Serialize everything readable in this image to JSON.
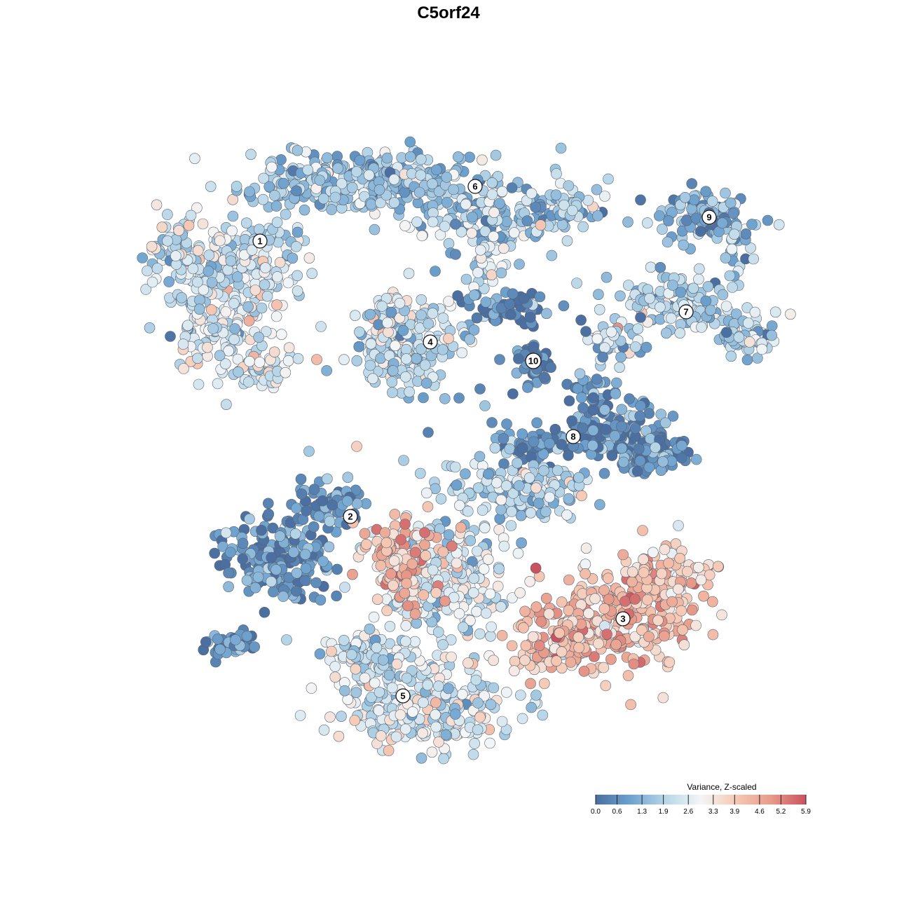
{
  "chart_data": {
    "type": "scatter",
    "title": "C5orf24",
    "xlabel": "",
    "ylabel": "",
    "grid": false,
    "legend_position": "bottom-right",
    "colorbar": {
      "title": "Variance, Z-scaled",
      "range": [
        0.0,
        5.9
      ],
      "ticks": [
        {
          "value": 0.0,
          "label": "0.0"
        },
        {
          "value": 0.6,
          "label": "0.6"
        },
        {
          "value": 1.3,
          "label": "1.3"
        },
        {
          "value": 1.9,
          "label": "1.9"
        },
        {
          "value": 2.6,
          "label": "2.6"
        },
        {
          "value": 3.3,
          "label": "3.3"
        },
        {
          "value": 3.9,
          "label": "3.9"
        },
        {
          "value": 4.6,
          "label": "4.6"
        },
        {
          "value": 5.2,
          "label": "5.2"
        },
        {
          "value": 5.9,
          "label": "5.9"
        }
      ],
      "colors": [
        "#4a6fa0",
        "#6fa3cf",
        "#b7d6e8",
        "#f4f6f7",
        "#f6c9b4",
        "#e89b8a",
        "#c9525f"
      ]
    },
    "clusters": [
      {
        "label": "1",
        "value_level": 2.4
      },
      {
        "label": "2",
        "value_level": 0.6
      },
      {
        "label": "3",
        "value_level": 4.1
      },
      {
        "label": "4",
        "value_level": 2.3
      },
      {
        "label": "5",
        "value_level": 2.5
      },
      {
        "label": "6",
        "value_level": 1.7
      },
      {
        "label": "7",
        "value_level": 2.0
      },
      {
        "label": "8",
        "value_level": 0.7
      },
      {
        "label": "9",
        "value_level": 1.2
      },
      {
        "label": "10",
        "value_level": 0.3
      }
    ]
  }
}
